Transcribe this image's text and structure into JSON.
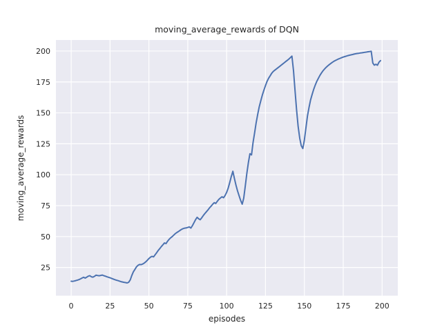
{
  "chart_data": {
    "type": "line",
    "title": "moving_average_rewards of DQN",
    "xlabel": "episodes",
    "ylabel": "moving_average_rewards",
    "xlim": [
      -9.8,
      210.1
    ],
    "ylim": [
      2.2,
      208.9
    ],
    "xticks": [
      0,
      25,
      50,
      75,
      100,
      125,
      150,
      175,
      200
    ],
    "yticks": [
      25,
      50,
      75,
      100,
      125,
      150,
      175,
      200
    ],
    "grid": true,
    "legend_position": "none",
    "style": {
      "plot_background": "#eaeaf2",
      "grid_color": "#ffffff",
      "line_color": "#4c72b0",
      "text_color": "#262626",
      "line_width": 2
    },
    "series": [
      {
        "name": "moving_average_rewards",
        "x_start": 0,
        "x_step": 1,
        "values": [
          13.9,
          13.8,
          14.1,
          14.4,
          14.8,
          15.2,
          15.8,
          16.5,
          17.1,
          16.4,
          17.2,
          18.0,
          18.4,
          17.5,
          17.2,
          17.9,
          18.8,
          18.5,
          18.3,
          18.6,
          18.9,
          18.4,
          18.0,
          17.5,
          17.1,
          16.7,
          16.2,
          15.7,
          15.2,
          14.8,
          14.4,
          14.0,
          13.6,
          13.3,
          13.0,
          12.8,
          12.5,
          13.0,
          15.0,
          18.5,
          21.5,
          23.5,
          25.5,
          26.8,
          27.4,
          27.3,
          27.8,
          28.6,
          29.6,
          30.9,
          32.2,
          33.4,
          34.0,
          33.6,
          35.3,
          37.0,
          38.8,
          40.3,
          41.9,
          43.4,
          44.9,
          44.3,
          46.2,
          47.8,
          49.0,
          50.0,
          51.2,
          52.4,
          53.3,
          54.1,
          55.0,
          55.8,
          56.4,
          56.8,
          57.0,
          57.4,
          57.8,
          56.9,
          58.8,
          61.2,
          63.6,
          65.6,
          64.4,
          63.6,
          65.2,
          67.0,
          68.6,
          70.1,
          71.6,
          73.2,
          74.6,
          76.1,
          77.4,
          76.8,
          78.6,
          80.1,
          81.2,
          82.2,
          81.4,
          83.2,
          85.8,
          89.2,
          93.8,
          98.6,
          102.8,
          97.0,
          91.5,
          87.0,
          83.0,
          79.3,
          76.2,
          81.0,
          91.0,
          101.0,
          110.0,
          117.0,
          116.0,
          126.0,
          134.0,
          142.0,
          149.0,
          155.0,
          160.0,
          164.5,
          168.5,
          172.0,
          175.5,
          178.0,
          180.0,
          182.0,
          183.5,
          184.5,
          185.5,
          186.5,
          187.5,
          188.5,
          189.5,
          190.5,
          191.5,
          192.5,
          193.5,
          194.7,
          195.9,
          184.0,
          168.0,
          152.0,
          139.0,
          129.5,
          123.5,
          121.2,
          128.0,
          138.0,
          147.5,
          154.5,
          160.5,
          165.0,
          169.0,
          172.5,
          175.5,
          178.0,
          180.3,
          182.3,
          184.0,
          185.5,
          186.8,
          188.0,
          189.0,
          190.0,
          190.9,
          191.7,
          192.4,
          193.0,
          193.6,
          194.1,
          194.6,
          195.1,
          195.5,
          195.9,
          196.3,
          196.6,
          196.9,
          197.2,
          197.5,
          197.8,
          198.0,
          198.2,
          198.4,
          198.6,
          198.8,
          199.0,
          199.2,
          199.4,
          199.6,
          199.8,
          190.3,
          188.6,
          189.3,
          188.5,
          191.0,
          192.3
        ]
      }
    ]
  }
}
